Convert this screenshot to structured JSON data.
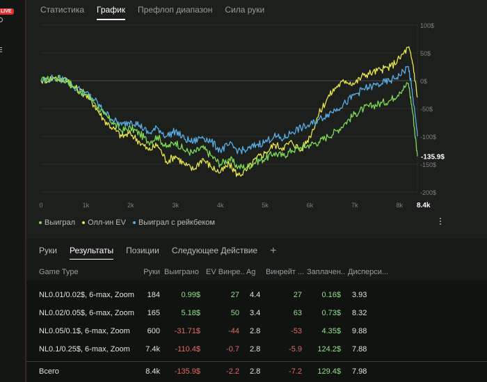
{
  "side": {
    "live_label": "LIVE"
  },
  "tabs": [
    "Статистика",
    "График",
    "Префлоп диапазон",
    "Сила руки"
  ],
  "active_tab": 1,
  "chart_data": {
    "type": "line",
    "x_ticks": [
      "0",
      "1k",
      "2k",
      "3k",
      "4k",
      "5k",
      "6k",
      "7k",
      "8k",
      "8.4k"
    ],
    "y_ticks": [
      "100$",
      "50$",
      "0$",
      "-50$",
      "-100$",
      "-150$",
      "-200$"
    ],
    "xlim": [
      0,
      8400
    ],
    "ylim": [
      -200,
      100
    ],
    "current_label": "-135.9$",
    "series": [
      {
        "name": "Выиграл",
        "color": "#7ed957",
        "x": [
          0,
          300,
          600,
          700,
          1000,
          1200,
          1400,
          1600,
          1800,
          2000,
          2200,
          2400,
          2600,
          2800,
          3000,
          3200,
          3400,
          3600,
          3800,
          4000,
          4200,
          4400,
          4600,
          4800,
          5000,
          5200,
          5400,
          5600,
          5800,
          6000,
          6200,
          6400,
          6600,
          6800,
          7000,
          7200,
          7400,
          7600,
          7800,
          8000,
          8200,
          8300,
          8400
        ],
        "y": [
          0,
          5,
          0,
          -10,
          -25,
          -40,
          -60,
          -75,
          -90,
          -85,
          -95,
          -110,
          -100,
          -120,
          -110,
          -125,
          -130,
          -120,
          -135,
          -150,
          -140,
          -155,
          -155,
          -145,
          -140,
          -130,
          -135,
          -125,
          -120,
          -115,
          -110,
          -100,
          -90,
          -75,
          -60,
          -50,
          -45,
          -40,
          -35,
          -20,
          -5,
          -60,
          -135.9
        ]
      },
      {
        "name": "Олл-ин EV",
        "color": "#e8e64a",
        "x": [
          0,
          300,
          600,
          700,
          1000,
          1200,
          1400,
          1600,
          1800,
          2000,
          2200,
          2400,
          2600,
          2800,
          3000,
          3200,
          3400,
          3600,
          3800,
          4000,
          4200,
          4400,
          4600,
          4800,
          5000,
          5200,
          5400,
          5600,
          5800,
          6000,
          6200,
          6400,
          6600,
          6800,
          7000,
          7200,
          7400,
          7600,
          7800,
          8000,
          8200,
          8300,
          8400
        ],
        "y": [
          0,
          5,
          0,
          -10,
          -25,
          -45,
          -70,
          -85,
          -100,
          -95,
          -110,
          -125,
          -115,
          -145,
          -135,
          -150,
          -160,
          -140,
          -155,
          -165,
          -150,
          -170,
          -160,
          -140,
          -130,
          -115,
          -120,
          -110,
          -125,
          -100,
          -60,
          -30,
          -10,
          0,
          -5,
          10,
          15,
          20,
          25,
          40,
          60,
          30,
          -30
        ]
      },
      {
        "name": "Выиграл с рейкбеком",
        "color": "#5aaee8",
        "x": [
          0,
          300,
          600,
          700,
          1000,
          1200,
          1400,
          1600,
          1800,
          2000,
          2200,
          2400,
          2600,
          2800,
          3000,
          3200,
          3400,
          3600,
          3800,
          4000,
          4200,
          4400,
          4600,
          4800,
          5000,
          5200,
          5400,
          5600,
          5800,
          6000,
          6200,
          6400,
          6600,
          6800,
          7000,
          7200,
          7400,
          7600,
          7800,
          8000,
          8200,
          8300,
          8400
        ],
        "y": [
          0,
          5,
          0,
          -10,
          -22,
          -35,
          -55,
          -70,
          -80,
          -72,
          -80,
          -95,
          -85,
          -100,
          -90,
          -105,
          -110,
          -100,
          -110,
          -125,
          -115,
          -125,
          -125,
          -115,
          -110,
          -100,
          -105,
          -92,
          -85,
          -80,
          -70,
          -60,
          -50,
          -40,
          -25,
          -15,
          -10,
          -5,
          0,
          10,
          25,
          -30,
          -100
        ]
      }
    ]
  },
  "bottom_tabs": [
    "Руки",
    "Результаты",
    "Позиции",
    "Следующее Действие"
  ],
  "bottom_active": 1,
  "add_tab": "+",
  "table": {
    "headers": [
      "Game Type",
      "Руки",
      "Выиграно",
      "EV Винре...",
      "Ag",
      "Винрейт ...",
      "Заплачен...",
      "Дисперси..."
    ],
    "rows": [
      {
        "game": "NL0.01/0.02$, 6-max, Zoom",
        "hands": "184",
        "won": "0.99$",
        "ev": "27",
        "ag": "4.4",
        "winrate": "27",
        "paid": "0.16$",
        "disp": "3.93",
        "won_pos": true,
        "ev_pos": true,
        "wr_pos": true
      },
      {
        "game": "NL0.02/0.05$, 6-max, Zoom",
        "hands": "165",
        "won": "5.18$",
        "ev": "50",
        "ag": "3.4",
        "winrate": "63",
        "paid": "0.73$",
        "disp": "8.32",
        "won_pos": true,
        "ev_pos": true,
        "wr_pos": true
      },
      {
        "game": "NL0.05/0.1$, 6-max, Zoom",
        "hands": "600",
        "won": "-31.71$",
        "ev": "-44",
        "ag": "2.8",
        "winrate": "-53",
        "paid": "4.35$",
        "disp": "9.88",
        "won_pos": false,
        "ev_pos": false,
        "wr_pos": false
      },
      {
        "game": "NL0.1/0.25$, 6-max, Zoom",
        "hands": "7.4k",
        "won": "-110.4$",
        "ev": "-0.7",
        "ag": "2.8",
        "winrate": "-5.9",
        "paid": "124.2$",
        "disp": "7.88",
        "won_pos": false,
        "ev_pos": false,
        "wr_pos": false
      }
    ],
    "total": {
      "game": "Всего",
      "hands": "8.4k",
      "won": "-135.9$",
      "ev": "-2.2",
      "ag": "2.8",
      "winrate": "-7.2",
      "paid": "129.4$",
      "disp": "7.98"
    }
  }
}
